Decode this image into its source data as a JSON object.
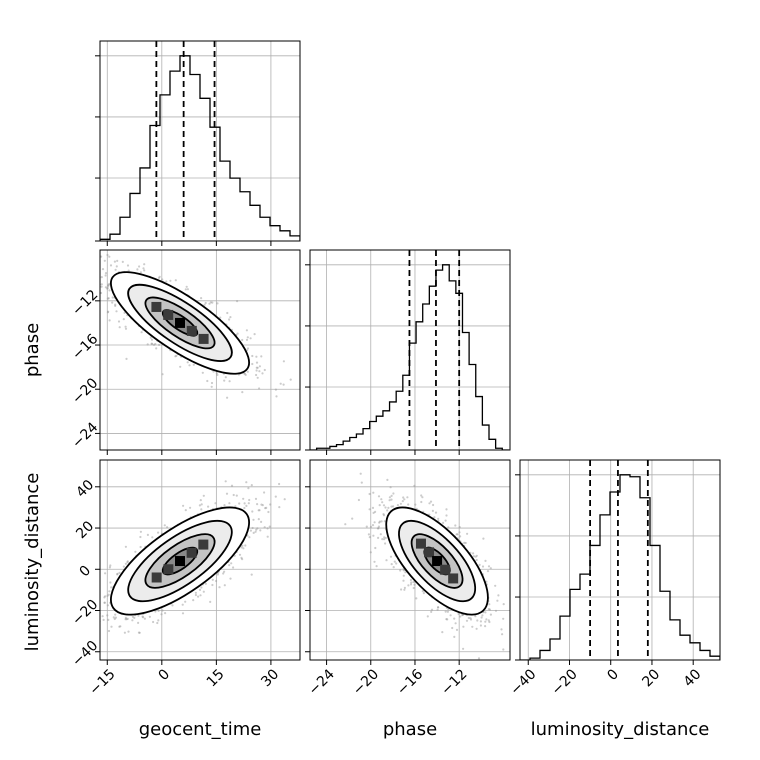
{
  "chart_data": {
    "type": "corner",
    "parameters": [
      {
        "key": "geocent_time",
        "label": "geocent_time",
        "range": [
          -17,
          38
        ],
        "ticks": [
          -15,
          0,
          15,
          30
        ],
        "tick_labels": [
          "−15",
          "0",
          "15",
          "30"
        ],
        "quantiles": [
          -1.5,
          6,
          14.5
        ],
        "hist_edges": [
          -17,
          -14.25,
          -11.5,
          -8.75,
          -6,
          -3.25,
          -0.5,
          2.25,
          5,
          7.75,
          10.5,
          13.25,
          16,
          18.75,
          21.5,
          24.25,
          27,
          29.75,
          32.5,
          35.25,
          38
        ],
        "hist_counts": [
          1,
          4,
          14,
          28,
          43,
          68,
          86,
          100,
          109,
          98,
          84,
          67,
          47,
          37,
          29,
          21,
          14,
          9,
          6,
          3
        ]
      },
      {
        "key": "phase",
        "label": "phase",
        "range": [
          -25.5,
          -7.4
        ],
        "ticks": [
          -24,
          -20,
          -16,
          -12
        ],
        "tick_labels": [
          "−24",
          "−20",
          "−16",
          "−12"
        ],
        "quantiles": [
          -16.5,
          -14.1,
          -12
        ],
        "hist_edges": [
          -25.5,
          -24.9,
          -24.3,
          -23.7,
          -23.1,
          -22.5,
          -21.9,
          -21.3,
          -20.7,
          -20.1,
          -19.5,
          -18.9,
          -18.3,
          -17.7,
          -17.1,
          -16.5,
          -15.9,
          -15.3,
          -14.7,
          -14.1,
          -13.5,
          -12.9,
          -12.3,
          -11.7,
          -11.1,
          -10.5,
          -9.9,
          -9.3,
          -8.7,
          -8.1,
          -7.5
        ],
        "hist_counts": [
          0,
          1,
          1,
          2,
          3,
          5,
          7,
          9,
          12,
          16,
          19,
          22,
          27,
          33,
          42,
          60,
          72,
          82,
          92,
          101,
          104,
          95,
          88,
          66,
          48,
          30,
          14,
          6,
          1,
          0
        ]
      },
      {
        "key": "luminosity_distance",
        "label": "luminosity_distance",
        "range": [
          -44,
          53
        ],
        "ticks": [
          -40,
          -20,
          0,
          20,
          40
        ],
        "tick_labels": [
          "−40",
          "−20",
          "0",
          "20",
          "40"
        ],
        "quantiles": [
          -10,
          3.5,
          18
        ],
        "hist_edges": [
          -44,
          -39.15,
          -34.3,
          -29.45,
          -24.6,
          -19.75,
          -14.9,
          -10.05,
          -5.2,
          -0.35,
          4.5,
          9.35,
          14.2,
          19.05,
          23.9,
          28.75,
          33.6,
          38.45,
          43.3,
          48.15,
          53
        ],
        "hist_counts": [
          0,
          1,
          5,
          11,
          23,
          37,
          45,
          60,
          76,
          88,
          97,
          96,
          85,
          60,
          36,
          21,
          13,
          9,
          5,
          2
        ]
      }
    ],
    "contour_levels": [
      0.118,
      0.393,
      0.675,
      0.865
    ]
  }
}
